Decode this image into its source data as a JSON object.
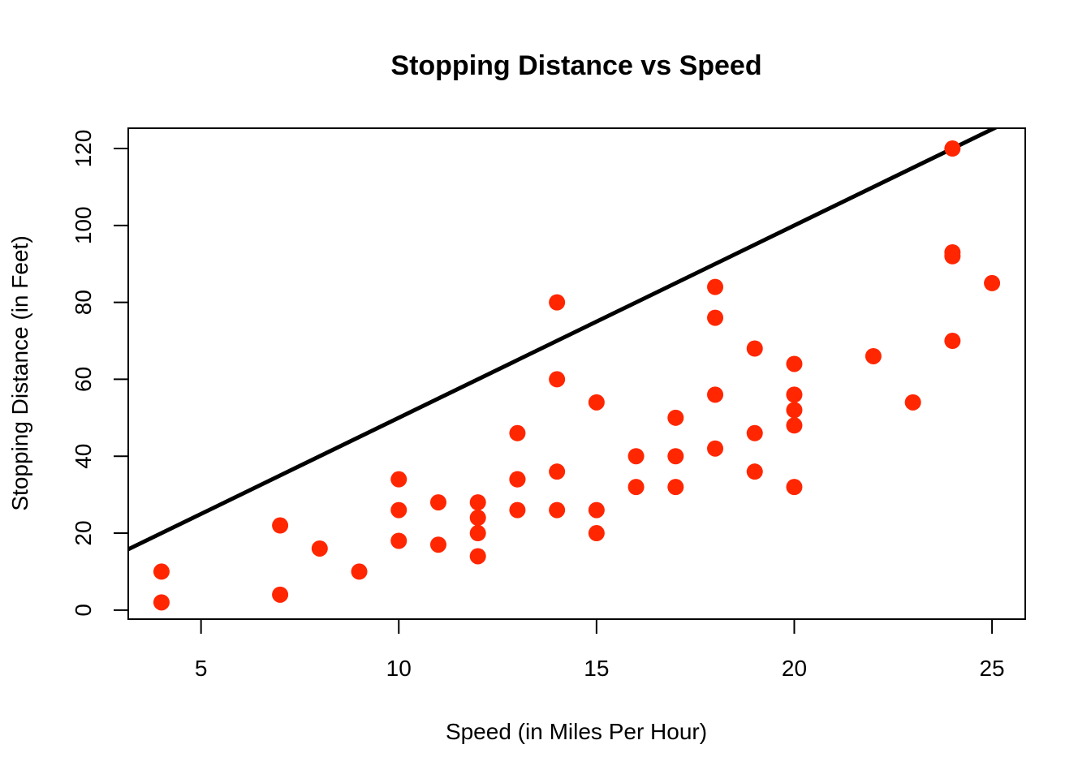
{
  "chart_data": {
    "type": "scatter",
    "title": "Stopping Distance vs Speed",
    "xlabel": "Speed (in Miles Per Hour)",
    "ylabel": "Stopping Distance (in Feet)",
    "xlim": [
      3.16,
      25.84
    ],
    "ylim": [
      -2.36,
      125.28
    ],
    "xticks": [
      5,
      10,
      15,
      20,
      25
    ],
    "yticks": [
      0,
      20,
      40,
      60,
      80,
      100,
      120
    ],
    "grid": false,
    "point_color": "#ff2600",
    "line_color": "#000000",
    "series": [
      {
        "x": [
          4,
          4,
          7,
          7,
          8,
          9,
          10,
          10,
          10,
          11,
          11,
          12,
          12,
          12,
          12,
          13,
          13,
          13,
          13,
          14,
          14,
          14,
          14,
          15,
          15,
          15,
          16,
          16,
          17,
          17,
          17,
          18,
          18,
          18,
          18,
          19,
          19,
          19,
          20,
          20,
          20,
          20,
          20,
          22,
          23,
          24,
          24,
          24,
          24,
          25
        ],
        "y": [
          2,
          10,
          4,
          22,
          16,
          10,
          18,
          26,
          34,
          17,
          28,
          14,
          20,
          24,
          28,
          26,
          34,
          34,
          46,
          26,
          36,
          60,
          80,
          20,
          26,
          54,
          32,
          40,
          32,
          40,
          50,
          42,
          56,
          76,
          84,
          36,
          46,
          68,
          32,
          48,
          52,
          56,
          64,
          66,
          54,
          70,
          92,
          93,
          120,
          85
        ]
      }
    ],
    "reference_line": {
      "intercept": 0,
      "slope": 5
    }
  }
}
